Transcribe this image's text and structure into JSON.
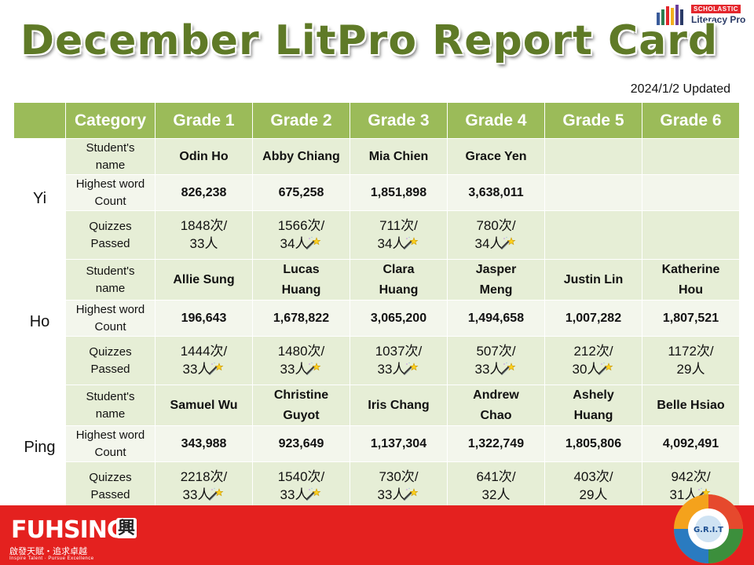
{
  "brand": {
    "badge": "SCHOLASTIC",
    "product": "Literacy Pro"
  },
  "title": "December LitPro Report Card",
  "updated": "2024/1/2 Updated",
  "table": {
    "headers": [
      "",
      "Category",
      "Grade 1",
      "Grade 2",
      "Grade 3",
      "Grade 4",
      "Grade 5",
      "Grade 6"
    ],
    "groups": [
      {
        "name": "Yi",
        "rows": [
          {
            "label": [
              "Student's",
              "name"
            ],
            "type": "name",
            "cells": [
              [
                "Odin Ho"
              ],
              [
                "Abby Chiang"
              ],
              [
                "Mia Chien"
              ],
              [
                "Grace Yen"
              ],
              [
                ""
              ],
              [
                ""
              ]
            ]
          },
          {
            "label": [
              "Highest word",
              "Count"
            ],
            "type": "count",
            "cells": [
              "826,238",
              "675,258",
              "1,851,898",
              "3,638,011",
              "",
              ""
            ]
          },
          {
            "label": [
              "Quizzes",
              "Passed"
            ],
            "type": "quiz",
            "cells": [
              {
                "q": "1848次/",
                "s": "33人",
                "star": false
              },
              {
                "q": "1566次/",
                "s": "34人",
                "star": true
              },
              {
                "q": "711次/",
                "s": "34人",
                "star": true
              },
              {
                "q": "780次/",
                "s": "34人",
                "star": true
              },
              {
                "q": "",
                "s": "",
                "star": false
              },
              {
                "q": "",
                "s": "",
                "star": false
              }
            ]
          }
        ]
      },
      {
        "name": "Ho",
        "rows": [
          {
            "label": [
              "Student's",
              "name"
            ],
            "type": "name",
            "cells": [
              [
                "Allie Sung"
              ],
              [
                "Lucas",
                "Huang"
              ],
              [
                "Clara",
                "Huang"
              ],
              [
                "Jasper",
                "Meng"
              ],
              [
                "Justin  Lin"
              ],
              [
                "Katherine",
                "Hou"
              ]
            ]
          },
          {
            "label": [
              "Highest word",
              "Count"
            ],
            "type": "count",
            "cells": [
              "196,643",
              "1,678,822",
              "3,065,200",
              "1,494,658",
              "1,007,282",
              "1,807,521"
            ]
          },
          {
            "label": [
              "Quizzes",
              "Passed"
            ],
            "type": "quiz",
            "cells": [
              {
                "q": "1444次/",
                "s": "33人",
                "star": true
              },
              {
                "q": "1480次/",
                "s": "33人",
                "star": true
              },
              {
                "q": "1037次/",
                "s": "33人",
                "star": true
              },
              {
                "q": "507次/",
                "s": "33人",
                "star": true
              },
              {
                "q": "212次/",
                "s": "30人",
                "star": true
              },
              {
                "q": "1172次/",
                "s": "29人",
                "star": false
              }
            ]
          }
        ]
      },
      {
        "name": "Ping",
        "rows": [
          {
            "label": [
              "Student's",
              "name"
            ],
            "type": "name",
            "cells": [
              [
                "Samuel Wu"
              ],
              [
                "Christine",
                "Guyot"
              ],
              [
                "Iris Chang"
              ],
              [
                "Andrew",
                "Chao"
              ],
              [
                "Ashely",
                "Huang"
              ],
              [
                "Belle Hsiao"
              ]
            ]
          },
          {
            "label": [
              "Highest word",
              "Count"
            ],
            "type": "count",
            "cells": [
              "343,988",
              "923,649",
              "1,137,304",
              "1,322,749",
              "1,805,806",
              "4,092,491"
            ]
          },
          {
            "label": [
              "Quizzes",
              "Passed"
            ],
            "type": "quiz",
            "cells": [
              {
                "q": "2218次/",
                "s": "33人",
                "star": true
              },
              {
                "q": "1540次/",
                "s": "33人",
                "star": true
              },
              {
                "q": "730次/",
                "s": "33人",
                "star": true
              },
              {
                "q": "641次/",
                "s": "32人",
                "star": false
              },
              {
                "q": "403次/",
                "s": "29人",
                "star": false
              },
              {
                "q": "942次/",
                "s": "31人",
                "star": true
              }
            ]
          }
        ]
      }
    ]
  },
  "footer": {
    "school": "FUHSING",
    "seal": "興",
    "motto_cn": "啟發天賦・追求卓越",
    "motto_en": "Inspire Talent · Pursue Excellence",
    "grit": "G.R.I.T"
  },
  "colors": {
    "header_green": "#9bbb59",
    "band_a": "#e6eed6",
    "band_b": "#f3f6ec",
    "title_green": "#5f7a27",
    "footer_red": "#e4211f"
  }
}
